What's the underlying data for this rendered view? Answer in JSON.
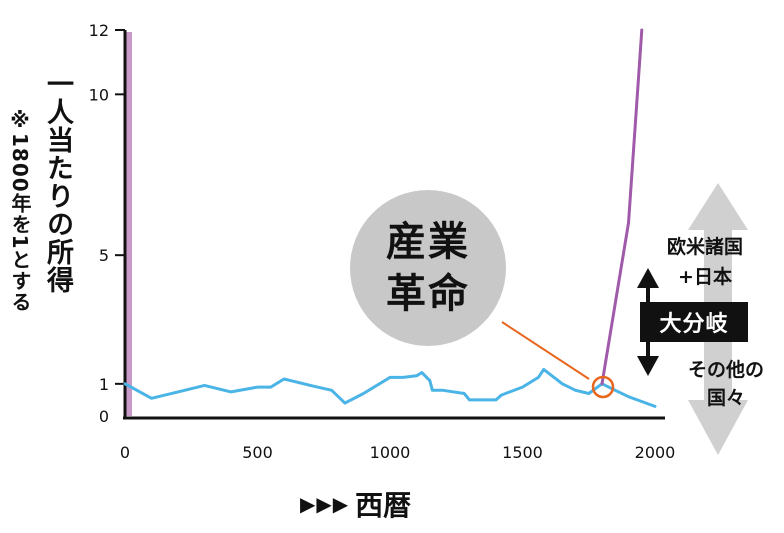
{
  "chart_data": {
    "type": "line",
    "ylabel": "一人当たりの所得",
    "ylabel_note": "※1800年を1とする",
    "xlabel": "西暦",
    "xlabel_prefix": "▶▶▶",
    "xlim": [
      0,
      2000
    ],
    "ylim": [
      0,
      12
    ],
    "xticks": [
      "0",
      "500",
      "1000",
      "1500",
      "2000"
    ],
    "yticks": [
      "0",
      "1",
      "5",
      "10",
      "12"
    ],
    "series": [
      {
        "color": "#4ab4e6",
        "points": [
          [
            0,
            1.0
          ],
          [
            100,
            0.55
          ],
          [
            200,
            0.75
          ],
          [
            300,
            0.95
          ],
          [
            400,
            0.75
          ],
          [
            500,
            0.9
          ],
          [
            550,
            0.9
          ],
          [
            600,
            1.15
          ],
          [
            700,
            0.95
          ],
          [
            780,
            0.8
          ],
          [
            830,
            0.4
          ],
          [
            900,
            0.7
          ],
          [
            1000,
            1.2
          ],
          [
            1050,
            1.2
          ],
          [
            1100,
            1.25
          ],
          [
            1120,
            1.35
          ],
          [
            1150,
            1.1
          ],
          [
            1160,
            0.8
          ],
          [
            1200,
            0.8
          ],
          [
            1280,
            0.7
          ],
          [
            1300,
            0.5
          ],
          [
            1400,
            0.5
          ],
          [
            1420,
            0.65
          ],
          [
            1500,
            0.9
          ],
          [
            1560,
            1.2
          ],
          [
            1580,
            1.45
          ],
          [
            1650,
            1.0
          ],
          [
            1700,
            0.8
          ],
          [
            1750,
            0.7
          ],
          [
            1800,
            1.0
          ],
          [
            1850,
            0.8
          ],
          [
            1900,
            0.6
          ],
          [
            2000,
            0.3
          ]
        ]
      },
      {
        "color": "#a05aaa",
        "points": [
          [
            1800,
            1.0
          ],
          [
            1900,
            6.0
          ],
          [
            1950,
            12.0
          ]
        ]
      }
    ]
  },
  "annotation": {
    "line1": "産業",
    "line2": "革命",
    "line_color": "#e8661e",
    "circle_color": "#e8661e"
  },
  "divergence": {
    "label": "大分岐",
    "west_line1": "欧米諸国",
    "west_line2": "+日本",
    "rest_line1": "その他の",
    "rest_line2": "国々"
  },
  "colors": {
    "axis_highlight": "#c89ac8",
    "arrow_gray": "#d0d0d0"
  }
}
